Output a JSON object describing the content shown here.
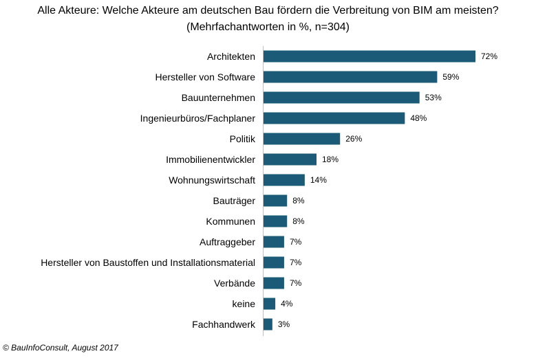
{
  "title": "Alle Akteure: Welche Akteure am deutschen Bau fördern die Verbreitung von BIM am meisten?",
  "subtitle": "(Mehrfachantworten in %, n=304)",
  "footer": "© BauInfoConsult, August 2017",
  "colors": {
    "bar": "#1c5b78",
    "text": "#000000"
  },
  "chart_data": {
    "type": "bar",
    "orientation": "horizontal",
    "title": "Alle Akteure: Welche Akteure am deutschen Bau fördern die Verbreitung von BIM am meisten?",
    "subtitle": "(Mehrfachantworten in %, n=304)",
    "categories": [
      "Architekten",
      "Hersteller von Software",
      "Bauunternehmen",
      "Ingenieurbüros/Fachplaner",
      "Politik",
      "Immobilienentwickler",
      "Wohnungswirtschaft",
      "Bauträger",
      "Kommunen",
      "Auftraggeber",
      "Hersteller von Baustoffen und Installationsmaterial",
      "Verbände",
      "keine",
      "Fachhandwerk"
    ],
    "values": [
      72,
      59,
      53,
      48,
      26,
      18,
      14,
      8,
      8,
      7,
      7,
      7,
      4,
      3
    ],
    "value_labels": [
      "72%",
      "59%",
      "53%",
      "48%",
      "26%",
      "18%",
      "14%",
      "8%",
      "8%",
      "7%",
      "7%",
      "7%",
      "4%",
      "3%"
    ],
    "unit": "%",
    "xlim": [
      0,
      72
    ],
    "grid": false,
    "legend": "none"
  }
}
